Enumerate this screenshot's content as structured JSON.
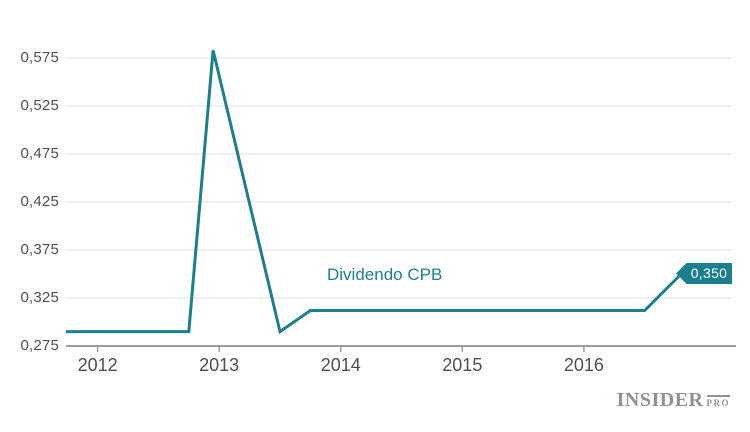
{
  "chart_data": {
    "type": "line",
    "title": "Dividendo CPB",
    "series_label": "Dividendo CPB",
    "x": [
      2011.74,
      2012.75,
      2012.95,
      2013.5,
      2013.75,
      2016.5,
      2016.8
    ],
    "values": [
      0.29,
      0.29,
      0.583,
      0.29,
      0.312,
      0.312,
      0.35
    ],
    "x_ticks": [
      {
        "value": 2012,
        "label": "2012"
      },
      {
        "value": 2013,
        "label": "2013"
      },
      {
        "value": 2014,
        "label": "2014"
      },
      {
        "value": 2015,
        "label": "2015"
      },
      {
        "value": 2016,
        "label": "2016"
      }
    ],
    "y_ticks": [
      {
        "value": 0.275,
        "label": "0,275"
      },
      {
        "value": 0.325,
        "label": "0,325"
      },
      {
        "value": 0.375,
        "label": "0,375"
      },
      {
        "value": 0.425,
        "label": "0,425"
      },
      {
        "value": 0.475,
        "label": "0,475"
      },
      {
        "value": 0.525,
        "label": "0,525"
      },
      {
        "value": 0.575,
        "label": "0,575"
      }
    ],
    "xlim": [
      2011.74,
      2017.21
    ],
    "ylim": [
      0.275,
      0.575
    ],
    "grid": true,
    "legend_position": "inline-annotation",
    "end_label": {
      "text": "0,350",
      "value": 0.35
    },
    "decimal_separator": ",",
    "colors": {
      "line": "#1c7f8e",
      "flag_bg": "#1c7f8e",
      "flag_text": "#ffffff",
      "grid": "#ececec",
      "axis": "#9c9c9c",
      "tick_label": "#4f4f4f",
      "series_label": "#1c7f8e",
      "background": "#ffffff"
    }
  },
  "watermark": {
    "brand": "INSIDER",
    "suffix": "PRO",
    "color": "#8b929a"
  }
}
